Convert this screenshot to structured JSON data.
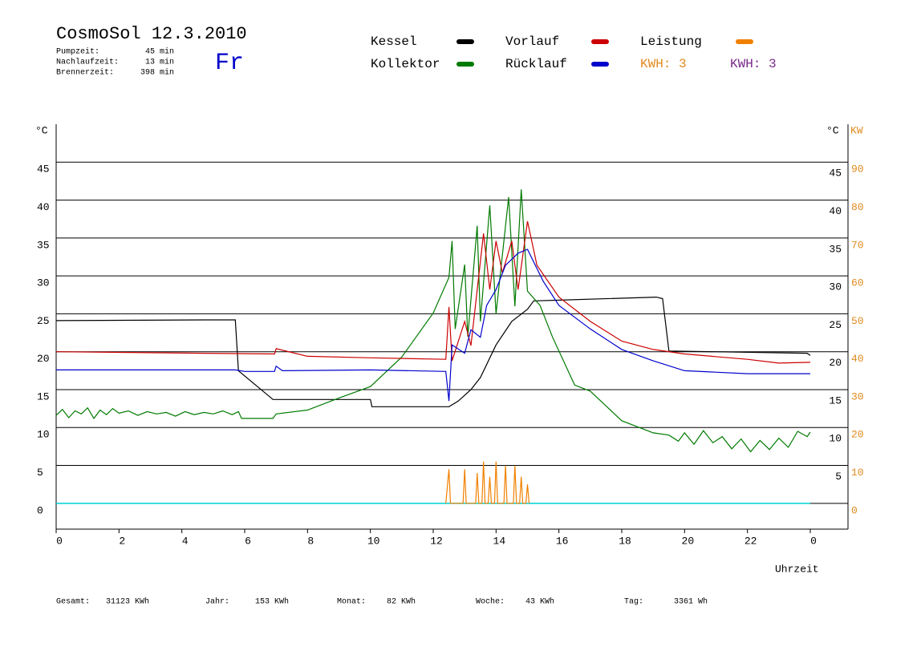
{
  "chart_data": {
    "type": "line",
    "title": "CosmoSol 12.3.2010",
    "weekday": "Fr",
    "info": [
      {
        "label": "Pumpzeit:",
        "value": "45 min"
      },
      {
        "label": "Nachlaufzeit:",
        "value": "13 min"
      },
      {
        "label": "Brennerzeit:",
        "value": "398 min"
      }
    ],
    "kwh_labels": [
      {
        "text": "KWH: 3",
        "color": "#e08a1e"
      },
      {
        "text": "KWH: 3",
        "color": "#7a2a8a"
      }
    ],
    "y_unit": "°C",
    "y_unit_right": "°C",
    "y2_unit": "KW",
    "x_label": "Uhrzeit",
    "xlim": [
      0,
      25.2
    ],
    "xticks": [
      0,
      2,
      4,
      6,
      8,
      10,
      12,
      14,
      16,
      18,
      20,
      22,
      {
        "value": 24,
        "label": "0"
      }
    ],
    "ylim": [
      -3.4,
      50
    ],
    "yticks": [
      0,
      5,
      10,
      15,
      20,
      25,
      30,
      35,
      40,
      45
    ],
    "yticks_right": [
      5,
      10,
      15,
      20,
      25,
      30,
      35,
      40,
      45
    ],
    "y2lim": [
      -6.8,
      100
    ],
    "y2ticks": [
      0,
      10,
      20,
      30,
      40,
      50,
      60,
      70,
      80,
      90
    ],
    "grid": true,
    "series": [
      {
        "name": "Kessel",
        "color": "#000000",
        "x": [
          0,
          4.8,
          5.7,
          5.8,
          6.9,
          10,
          10.05,
          12.5,
          12.8,
          13.2,
          13.5,
          14,
          14.5,
          15,
          15.2,
          16,
          19.1,
          19.3,
          19.5,
          23.9,
          24
        ],
        "values": [
          24.1,
          24.2,
          24.2,
          17.5,
          13.7,
          13.7,
          12.75,
          12.75,
          13.5,
          15,
          16.6,
          20.9,
          24,
          25.6,
          26.7,
          26.8,
          27.2,
          27,
          20.1,
          19.8,
          19.5
        ]
      },
      {
        "name": "Kollektor",
        "color": "#007a00",
        "x": [
          0,
          0.2,
          0.4,
          0.6,
          0.8,
          1.0,
          1.2,
          1.4,
          1.6,
          1.8,
          2.0,
          2.3,
          2.6,
          2.9,
          3.2,
          3.5,
          3.8,
          4.1,
          4.4,
          4.7,
          5.0,
          5.3,
          5.6,
          5.8,
          5.9,
          6.9,
          7,
          8,
          9,
          10,
          11,
          12,
          12.5,
          12.6,
          12.7,
          13,
          13.1,
          13.4,
          13.5,
          13.8,
          14,
          14.4,
          14.6,
          14.8,
          15,
          15.4,
          15.8,
          16.5,
          17,
          18,
          19,
          19.5,
          19.8,
          20.0,
          20.3,
          20.6,
          20.9,
          21.2,
          21.5,
          21.8,
          22.1,
          22.4,
          22.7,
          23.0,
          23.3,
          23.6,
          23.9,
          24
        ],
        "values": [
          11.6,
          12.4,
          11.3,
          12.2,
          11.8,
          12.6,
          11.2,
          12.3,
          11.7,
          12.5,
          11.9,
          12.2,
          11.6,
          12.1,
          11.8,
          12.0,
          11.5,
          12.1,
          11.7,
          12.0,
          11.8,
          12.2,
          11.7,
          12.1,
          11.2,
          11.2,
          11.8,
          12.3,
          13.9,
          15.4,
          19.3,
          25.1,
          29.8,
          34.6,
          23,
          31.5,
          22,
          36.6,
          24,
          39.3,
          25,
          40.4,
          26,
          41.4,
          28,
          26.1,
          21.9,
          15.6,
          14.8,
          10.9,
          9.3,
          9.0,
          8.2,
          9.3,
          7.8,
          9.6,
          8.0,
          8.8,
          7.2,
          8.5,
          6.8,
          8.3,
          7.1,
          8.6,
          7.4,
          9.5,
          8.8,
          9.4
        ]
      },
      {
        "name": "Vorlauf",
        "color": "#cc0000",
        "x": [
          0,
          6.95,
          7,
          8,
          10,
          12.4,
          12.5,
          12.6,
          13,
          13.2,
          13.6,
          13.8,
          14,
          14.2,
          14.5,
          14.7,
          15,
          15.3,
          16,
          17,
          18,
          19,
          20,
          22,
          23,
          24
        ],
        "values": [
          20.0,
          19.7,
          20.4,
          19.4,
          19.2,
          19.0,
          25.9,
          18.8,
          24,
          20.8,
          35.6,
          28.2,
          34.6,
          30.4,
          34.6,
          28.2,
          37.2,
          31.4,
          27.2,
          24,
          21.4,
          20.3,
          19.7,
          19.0,
          18.5,
          18.6
        ]
      },
      {
        "name": "Rücklauf",
        "color": "#0000cc",
        "x": [
          0,
          5.7,
          6,
          6.95,
          7,
          7.2,
          10,
          12.4,
          12.5,
          12.6,
          13.0,
          13.2,
          13.5,
          13.7,
          14,
          14.3,
          14.7,
          15,
          15.5,
          16,
          17,
          18,
          19,
          20,
          22,
          24
        ],
        "values": [
          17.6,
          17.6,
          17.4,
          17.4,
          18.1,
          17.5,
          17.6,
          17.4,
          13.5,
          20.9,
          19.8,
          22.9,
          21.9,
          26.1,
          28.2,
          31.4,
          33,
          33.5,
          29.3,
          26.1,
          23,
          20.3,
          18.8,
          17.5,
          17.1,
          17.1
        ]
      },
      {
        "name": "Leistung",
        "color": "#f08000",
        "axis": "y2",
        "x": [
          12.4,
          12.5,
          12.55,
          12.95,
          13.0,
          13.05,
          13.35,
          13.4,
          13.45,
          13.55,
          13.6,
          13.65,
          13.75,
          13.8,
          13.85,
          13.95,
          14.0,
          14.05,
          14.25,
          14.3,
          14.35,
          14.55,
          14.6,
          14.65,
          14.75,
          14.8,
          14.85,
          14.95,
          15.0,
          15.05
        ],
        "values": [
          0,
          9,
          0,
          0,
          9,
          0,
          0,
          8,
          0,
          0,
          11,
          0,
          0,
          7,
          0,
          0,
          11,
          0,
          0,
          10,
          0,
          0,
          10,
          0,
          0,
          7,
          0,
          0,
          5,
          0
        ]
      }
    ],
    "totals": [
      {
        "label": "Gesamt:",
        "value": "31123 KWh"
      },
      {
        "label": "Jahr:",
        "value": "153 KWh"
      },
      {
        "label": "Monat:",
        "value": "82 KWh"
      },
      {
        "label": "Woche:",
        "value": "43 KWh"
      },
      {
        "label": "Tag:",
        "value": "3361 Wh"
      }
    ]
  }
}
